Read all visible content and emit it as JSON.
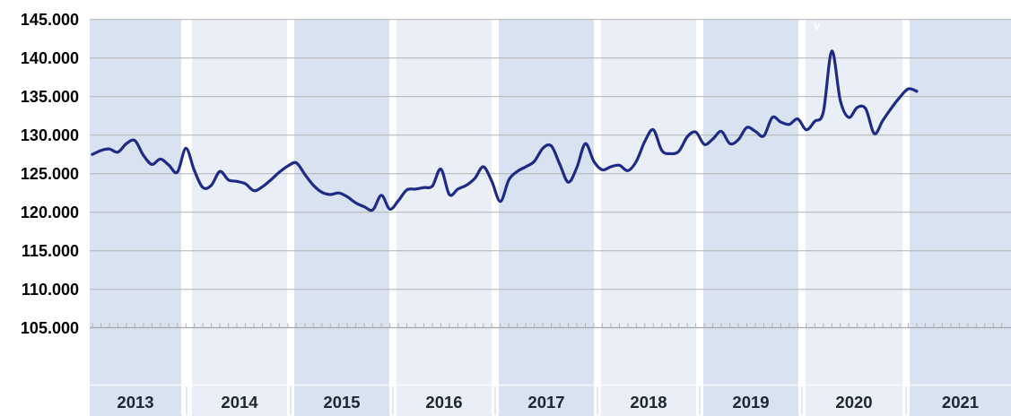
{
  "watermark": {
    "text": "v"
  },
  "colors": {
    "background": "#ffffff",
    "band_dark": "#d9e2f0",
    "band_light": "#e9eef7",
    "gridline": "#b2b2b2",
    "axis_line": "#a8a8a8",
    "minor_tick": "#b2b2b2",
    "line": "#1d2b87",
    "y_label_text": "#000000",
    "year_label_text": "#1e2633",
    "label_divider": "#ffffff",
    "year_gap_tick": "#d5dae2"
  },
  "chart_data": {
    "type": "line",
    "title": "",
    "legend": "none",
    "grid": "horizontal",
    "line_smoothing": true,
    "ylim": [
      105,
      145
    ],
    "y_step": 5,
    "y_tick_labels": [
      "145.000",
      "140.000",
      "135.000",
      "130.000",
      "125.000",
      "120.000",
      "115.000",
      "110.000",
      "105.000"
    ],
    "year_labels": [
      "2013",
      "2014",
      "2015",
      "2016",
      "2017",
      "2018",
      "2019",
      "2020",
      "2021"
    ],
    "x": [
      "2013-01",
      "2013-02",
      "2013-03",
      "2013-04",
      "2013-05",
      "2013-06",
      "2013-07",
      "2013-08",
      "2013-09",
      "2013-10",
      "2013-11",
      "2013-12",
      "2014-01",
      "2014-02",
      "2014-03",
      "2014-04",
      "2014-05",
      "2014-06",
      "2014-07",
      "2014-08",
      "2014-09",
      "2014-10",
      "2014-11",
      "2014-12",
      "2015-01",
      "2015-02",
      "2015-03",
      "2015-04",
      "2015-05",
      "2015-06",
      "2015-07",
      "2015-08",
      "2015-09",
      "2015-10",
      "2015-11",
      "2015-12",
      "2016-01",
      "2016-02",
      "2016-03",
      "2016-04",
      "2016-05",
      "2016-06",
      "2016-07",
      "2016-08",
      "2016-09",
      "2016-10",
      "2016-11",
      "2016-12",
      "2017-01",
      "2017-02",
      "2017-03",
      "2017-04",
      "2017-05",
      "2017-06",
      "2017-07",
      "2017-08",
      "2017-09",
      "2017-10",
      "2017-11",
      "2017-12",
      "2018-01",
      "2018-02",
      "2018-03",
      "2018-04",
      "2018-05",
      "2018-06",
      "2018-07",
      "2018-08",
      "2018-09",
      "2018-10",
      "2018-11",
      "2018-12",
      "2019-01",
      "2019-02",
      "2019-03",
      "2019-04",
      "2019-05",
      "2019-06",
      "2019-07",
      "2019-08",
      "2019-09",
      "2019-10",
      "2019-11",
      "2019-12",
      "2020-01",
      "2020-02",
      "2020-03",
      "2020-04",
      "2020-05",
      "2020-06",
      "2020-07",
      "2020-08",
      "2020-09",
      "2020-10",
      "2020-11",
      "2020-12",
      "2021-01",
      "2021-02"
    ],
    "series": [
      {
        "name": "",
        "values": [
          127.5,
          128.0,
          128.2,
          127.8,
          128.9,
          129.3,
          127.4,
          126.2,
          126.9,
          126.1,
          125.2,
          128.3,
          125.4,
          123.2,
          123.5,
          125.3,
          124.2,
          124.0,
          123.7,
          122.8,
          123.3,
          124.2,
          125.2,
          126.0,
          126.4,
          124.9,
          123.5,
          122.6,
          122.3,
          122.5,
          122.0,
          121.2,
          120.7,
          120.3,
          122.2,
          120.4,
          121.5,
          122.9,
          123.0,
          123.2,
          123.4,
          125.6,
          122.3,
          123.0,
          123.5,
          124.4,
          125.9,
          124.0,
          121.4,
          124.2,
          125.3,
          125.9,
          126.6,
          128.3,
          128.6,
          126.2,
          123.9,
          125.8,
          128.9,
          126.6,
          125.5,
          125.9,
          126.1,
          125.4,
          126.6,
          129.2,
          130.7,
          128.0,
          127.6,
          127.9,
          129.8,
          130.4,
          128.8,
          129.5,
          130.5,
          128.9,
          129.4,
          131.0,
          130.5,
          129.9,
          132.3,
          131.7,
          131.4,
          132.1,
          130.7,
          131.8,
          133.0,
          140.9,
          134.5,
          132.3,
          133.6,
          133.4,
          130.2,
          131.9,
          133.5,
          134.9,
          136.0,
          135.7
        ]
      }
    ]
  }
}
